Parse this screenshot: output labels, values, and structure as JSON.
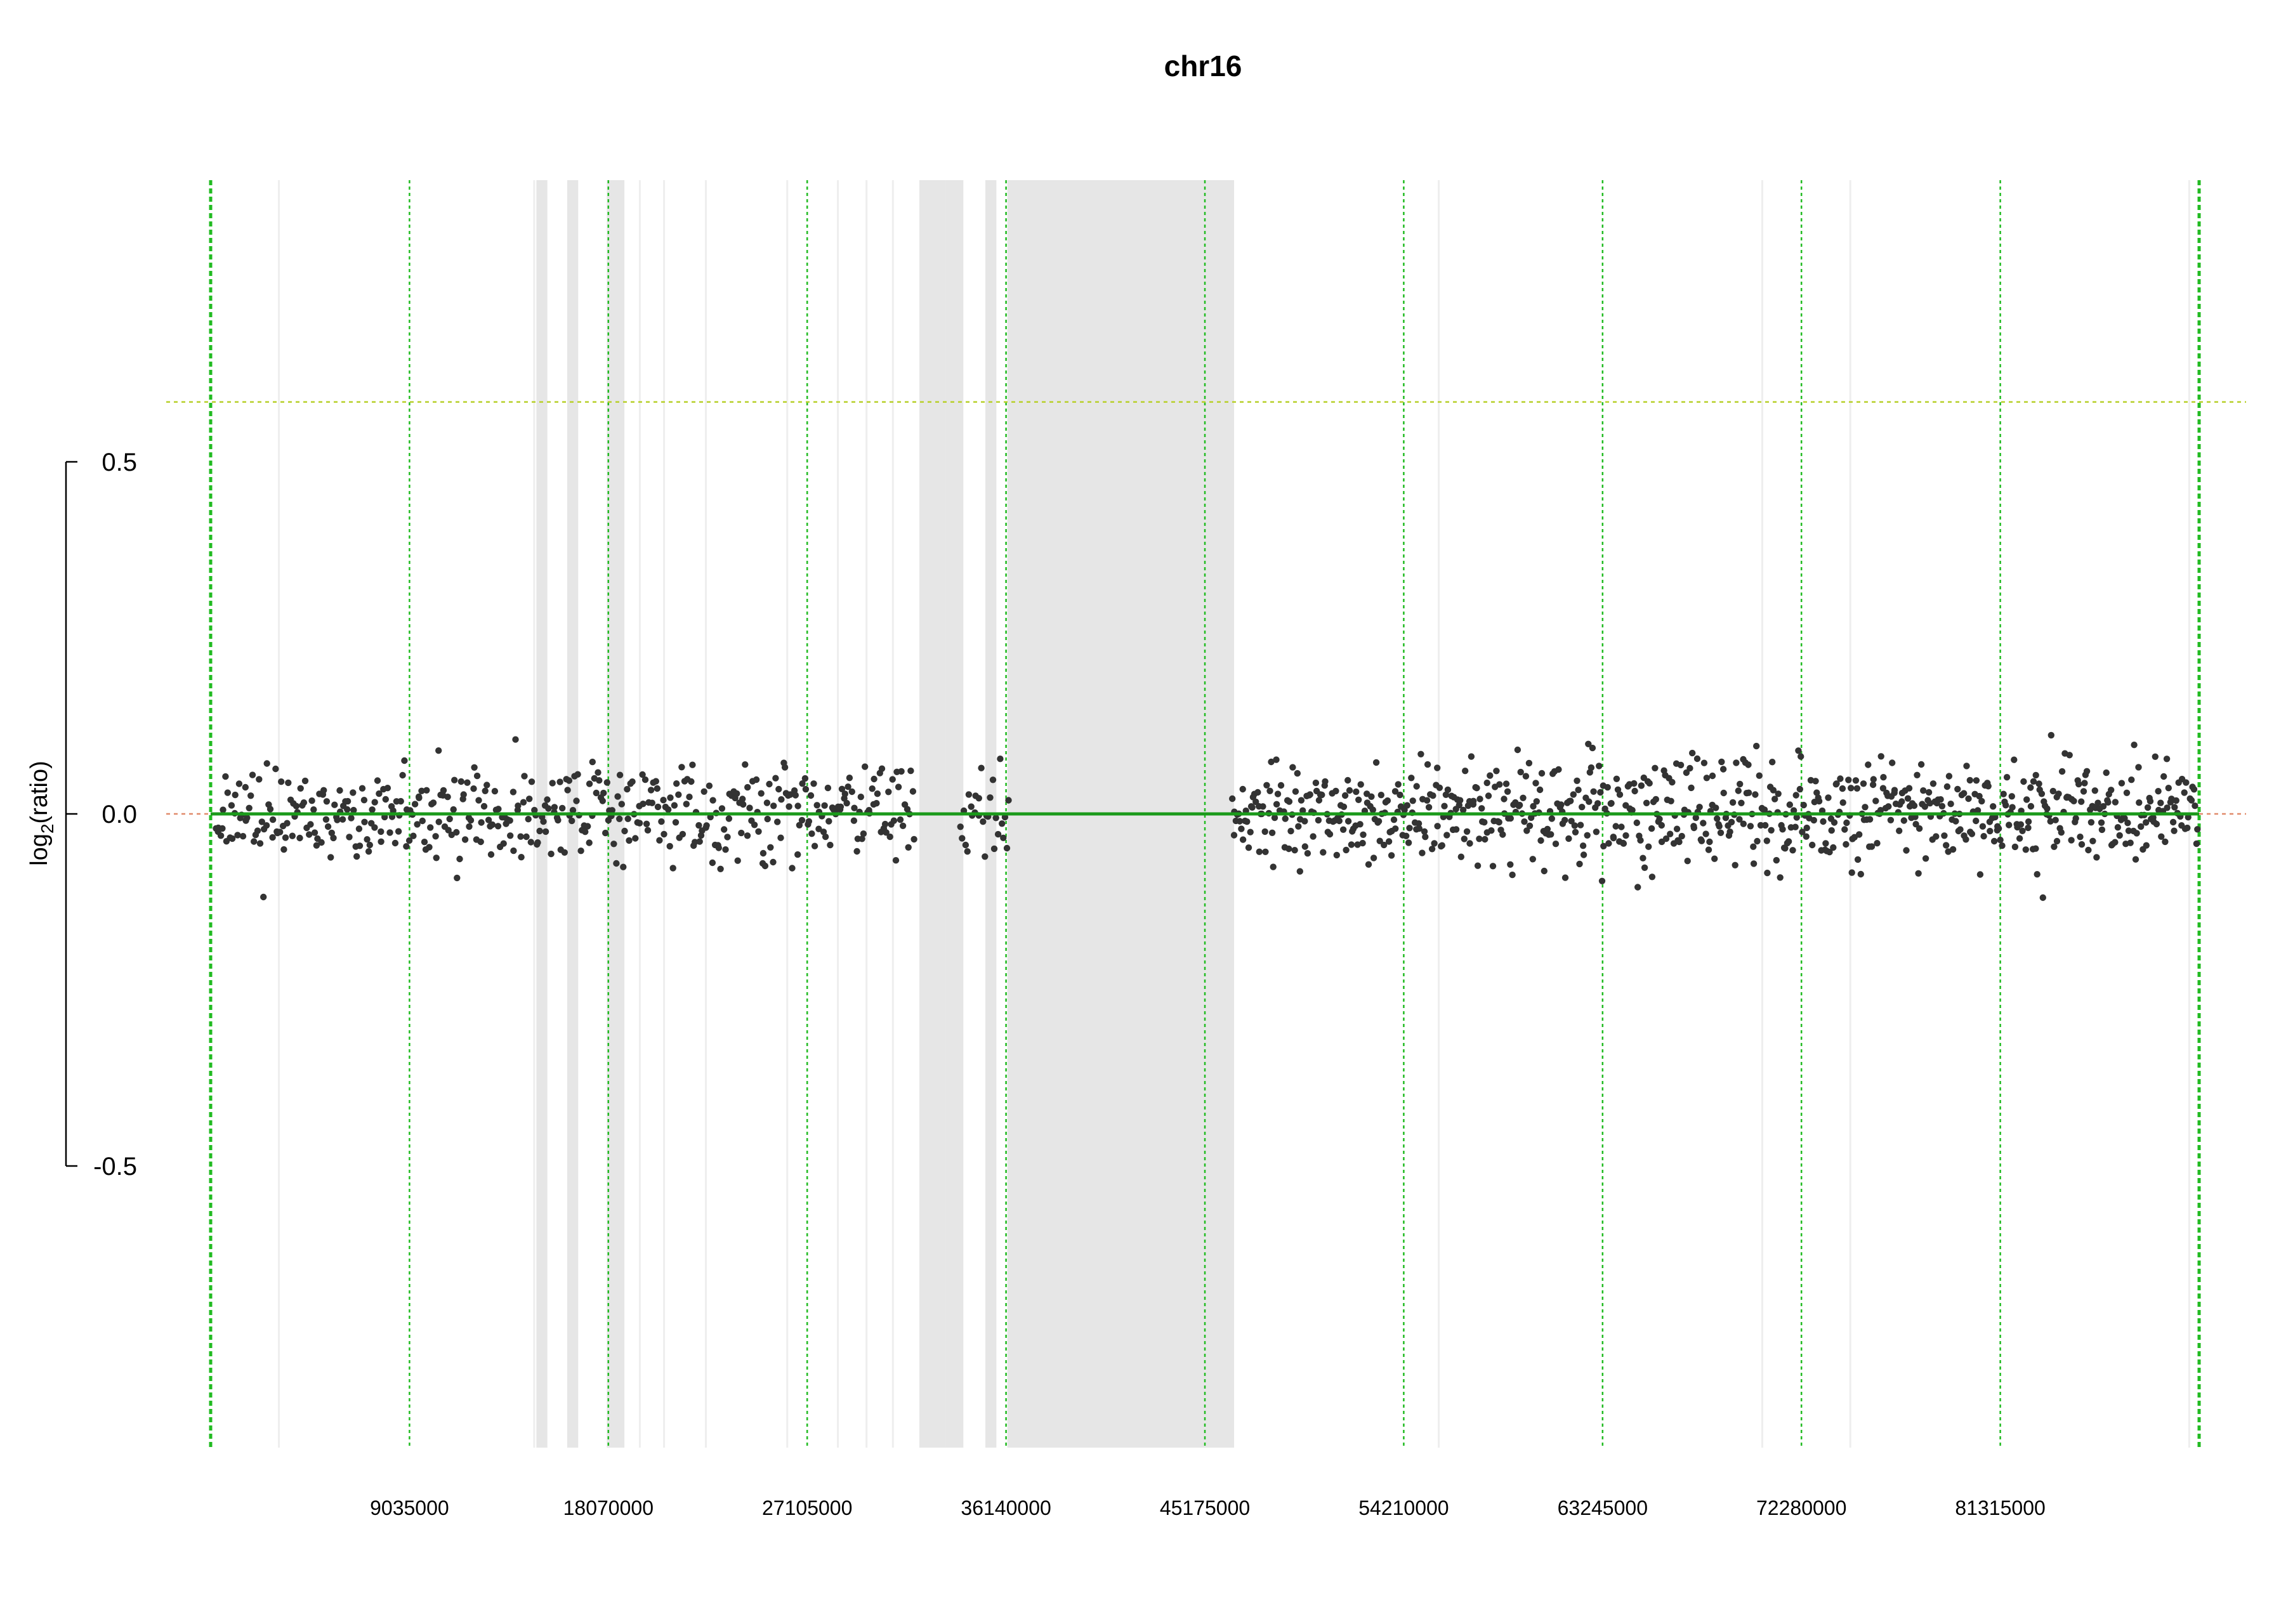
{
  "chart_data": {
    "type": "scatter",
    "title": "chr16",
    "ylabel": {
      "base": "log",
      "sub": "2",
      "rest": "(ratio)"
    },
    "xlim": [
      0,
      90350000
    ],
    "ylim": [
      -0.9,
      0.9
    ],
    "x_ticks": [
      9035000,
      18070000,
      27105000,
      36140000,
      45175000,
      54210000,
      63245000,
      72280000,
      81315000
    ],
    "x_tick_labels": [
      "9035000",
      "18070000",
      "27105000",
      "36140000",
      "45175000",
      "54210000",
      "63245000",
      "72280000",
      "81315000"
    ],
    "y_ticks": [
      -0.5,
      0.0,
      0.5
    ],
    "y_tick_labels": [
      "-0.5",
      "0.0",
      "0.5"
    ],
    "reference_lines": {
      "baseline": 0.0,
      "upper_threshold": 0.585
    },
    "segment": {
      "value": 0.0,
      "start": 0,
      "end": 90350000
    },
    "gap_regions": [
      [
        14800000,
        15300000
      ],
      [
        16200000,
        16700000
      ],
      [
        18000000,
        18800000
      ],
      [
        32200000,
        33400000
      ],
      [
        33400000,
        34200000
      ],
      [
        35200000,
        35700000
      ],
      [
        36200000,
        46500000
      ]
    ],
    "point_ranges": [
      {
        "start": 200000,
        "end": 32000000,
        "count": 460
      },
      {
        "start": 34000000,
        "end": 36300000,
        "count": 28
      },
      {
        "start": 46400000,
        "end": 90300000,
        "count": 780
      }
    ],
    "point_sd": 0.036,
    "grid": true,
    "colors": {
      "points": "#333333",
      "segment": "#1a9a1a",
      "guide": "#22bb22",
      "threshold": "#b8d02a",
      "baseline": "#e08a6a",
      "gaps": "#e6e6e6",
      "probe_lines": "#eeeeee"
    }
  }
}
